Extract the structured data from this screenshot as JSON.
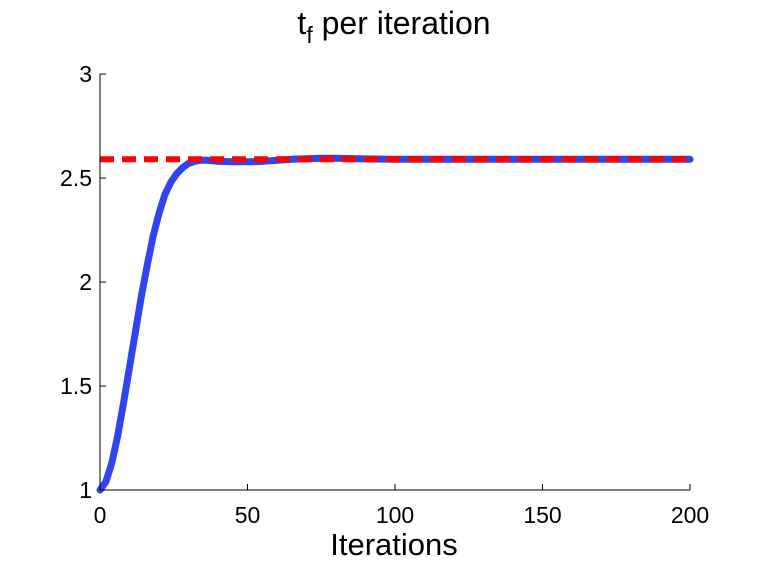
{
  "chart_data": {
    "type": "line",
    "title": {
      "base": "t",
      "subscript": "f",
      "rest": " per iteration"
    },
    "xlabel": "Iterations",
    "ylabel": "",
    "xlim": [
      0,
      200
    ],
    "ylim": [
      1,
      3
    ],
    "xticks": [
      0,
      50,
      100,
      150,
      200
    ],
    "yticks": [
      1,
      1.5,
      2,
      2.5,
      3
    ],
    "xtick_labels": [
      "0",
      "50",
      "100",
      "150",
      "200"
    ],
    "ytick_labels": [
      "1",
      "1.5",
      "2",
      "2.5",
      "3"
    ],
    "grid": false,
    "series": [
      {
        "style": "solid",
        "color": "#2f45f2",
        "x": [
          0,
          2,
          4,
          6,
          8,
          10,
          12,
          14,
          16,
          18,
          20,
          22,
          24,
          26,
          28,
          30,
          32,
          34,
          36,
          38,
          40,
          45,
          50,
          55,
          60,
          65,
          70,
          75,
          80,
          90,
          100,
          120,
          140,
          160,
          180,
          200
        ],
        "y": [
          1.0,
          1.04,
          1.13,
          1.26,
          1.42,
          1.59,
          1.76,
          1.93,
          2.08,
          2.22,
          2.33,
          2.42,
          2.48,
          2.52,
          2.55,
          2.57,
          2.58,
          2.585,
          2.585,
          2.583,
          2.58,
          2.578,
          2.578,
          2.58,
          2.585,
          2.59,
          2.593,
          2.595,
          2.595,
          2.592,
          2.59,
          2.59,
          2.59,
          2.59,
          2.59,
          2.59
        ]
      },
      {
        "style": "dashed",
        "color": "#ff0000",
        "x": [
          0,
          200
        ],
        "y": [
          2.59,
          2.59
        ]
      }
    ]
  }
}
